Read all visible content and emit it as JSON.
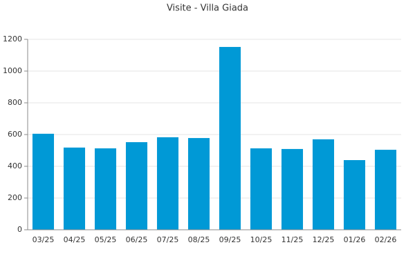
{
  "chart_data": {
    "type": "bar",
    "title": "Visite - Villa Giada",
    "categories": [
      "03/25",
      "04/25",
      "05/25",
      "06/25",
      "07/25",
      "08/25",
      "09/25",
      "10/25",
      "11/25",
      "12/25",
      "01/26",
      "02/26"
    ],
    "values": [
      605,
      518,
      513,
      552,
      583,
      578,
      1152,
      513,
      509,
      570,
      439,
      504
    ],
    "color": "#0099d6",
    "ylim": [
      0,
      1200
    ],
    "yticks": [
      0,
      200,
      400,
      600,
      800,
      1000,
      1200
    ],
    "grid": true
  }
}
